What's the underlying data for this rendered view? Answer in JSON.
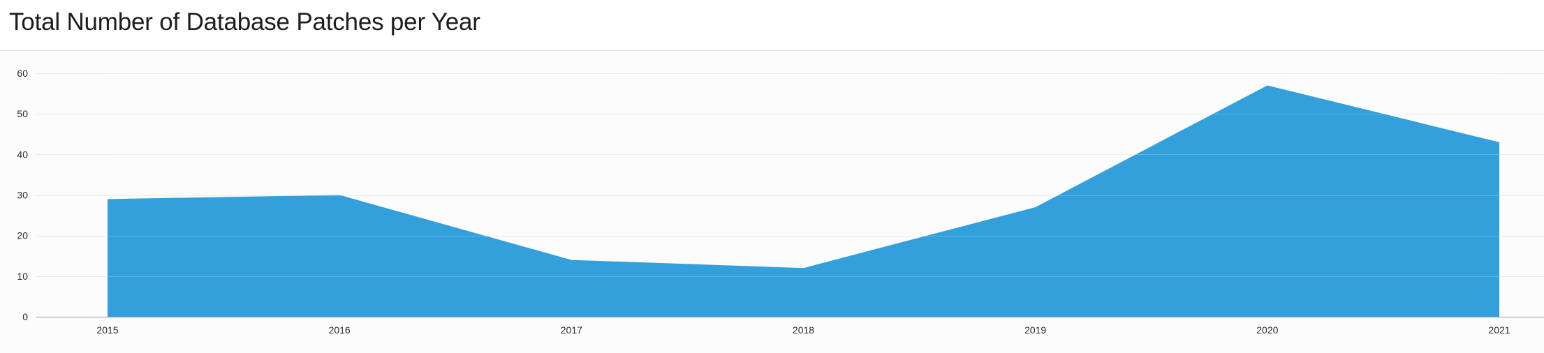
{
  "title": "Total Number of Database Patches per Year",
  "chart_data": {
    "type": "area",
    "title": "Total Number of Database Patches per Year",
    "x": [
      "2015",
      "2016",
      "2017",
      "2018",
      "2019",
      "2020",
      "2021"
    ],
    "series": [
      {
        "values": [
          29,
          30,
          14,
          12,
          27,
          57,
          43
        ]
      }
    ],
    "ylim": [
      0,
      60
    ],
    "yticks": [
      0,
      10,
      20,
      30,
      40,
      50,
      60
    ],
    "grid": true,
    "fill_color": "#33a0dc",
    "xlabel": "",
    "ylabel": ""
  }
}
